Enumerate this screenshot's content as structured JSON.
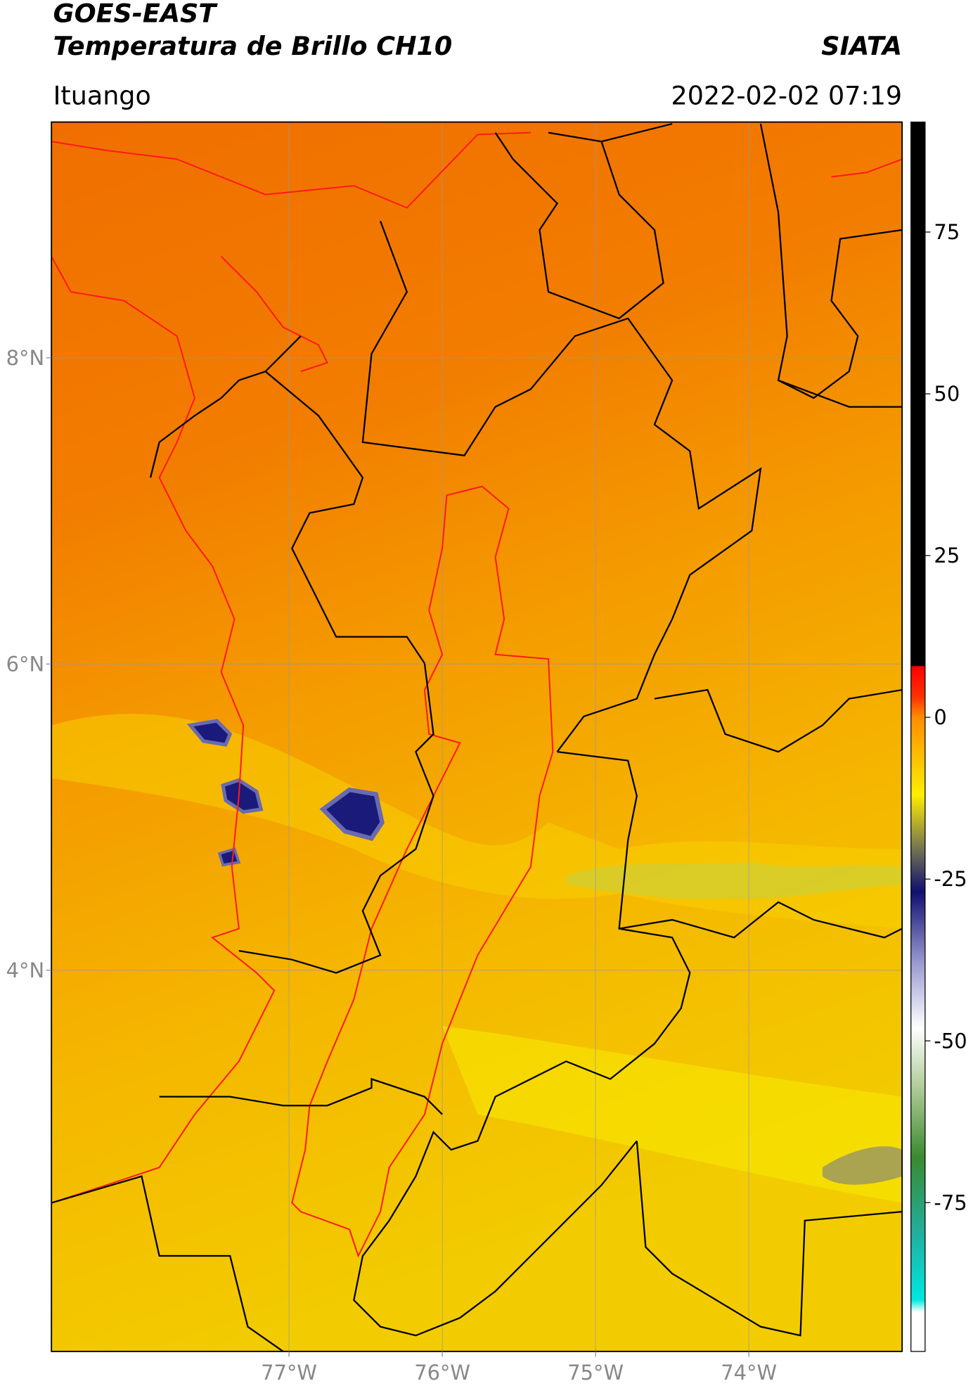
{
  "header": {
    "title": "GOES-EAST",
    "subtitle": "Temperatura de Brillo CH10",
    "source": "SIATA",
    "location": "Ituango",
    "datetime": "2022-02-02 07:19"
  },
  "map": {
    "xlim": [
      -78.55,
      -73.0
    ],
    "ylim": [
      1.51,
      9.54
    ],
    "xticks": [
      {
        "value": -77,
        "label": "77°W"
      },
      {
        "value": -76,
        "label": "76°W"
      },
      {
        "value": -75,
        "label": "75°W"
      },
      {
        "value": -74,
        "label": "74°W"
      }
    ],
    "yticks": [
      {
        "value": 4,
        "label": "4°N"
      },
      {
        "value": 6,
        "label": "6°N"
      },
      {
        "value": 8,
        "label": "8°N"
      }
    ],
    "grid": true
  },
  "colorbar": {
    "lim": [
      -98,
      92
    ],
    "ticks": [
      -75,
      -50,
      -25,
      0,
      25,
      50,
      75
    ]
  }
}
